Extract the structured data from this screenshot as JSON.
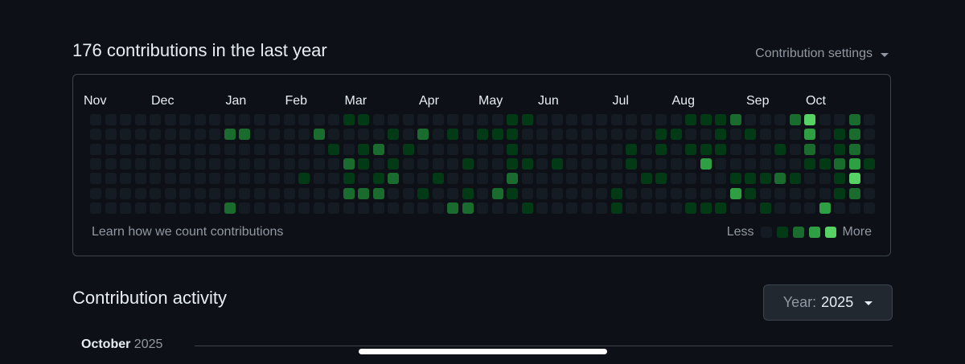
{
  "header": {
    "title": "176 contributions in the last year",
    "settings_label": "Contribution settings"
  },
  "graph": {
    "months": [
      {
        "label": "Nov",
        "week": 0
      },
      {
        "label": "Dec",
        "week": 4
      },
      {
        "label": "Jan",
        "week": 9
      },
      {
        "label": "Feb",
        "week": 13
      },
      {
        "label": "Mar",
        "week": 17
      },
      {
        "label": "Apr",
        "week": 22
      },
      {
        "label": "May",
        "week": 26
      },
      {
        "label": "Jun",
        "week": 30
      },
      {
        "label": "Jul",
        "week": 35
      },
      {
        "label": "Aug",
        "week": 39
      },
      {
        "label": "Sep",
        "week": 44
      },
      {
        "label": "Oct",
        "week": 48
      }
    ],
    "level_colors": [
      "#151b23",
      "#033a16",
      "#196c2e",
      "#2ea043",
      "#56d364"
    ],
    "weeks": 53,
    "contributions": [
      [
        9,
        1,
        2
      ],
      [
        9,
        6,
        2
      ],
      [
        10,
        1,
        2
      ],
      [
        14,
        4,
        1
      ],
      [
        15,
        1,
        2
      ],
      [
        16,
        2,
        1
      ],
      [
        17,
        0,
        1
      ],
      [
        17,
        3,
        2
      ],
      [
        17,
        4,
        1
      ],
      [
        17,
        5,
        2
      ],
      [
        18,
        0,
        1
      ],
      [
        18,
        2,
        1
      ],
      [
        18,
        3,
        1
      ],
      [
        18,
        5,
        2
      ],
      [
        19,
        2,
        2
      ],
      [
        19,
        4,
        1
      ],
      [
        19,
        5,
        2
      ],
      [
        20,
        1,
        1
      ],
      [
        20,
        3,
        1
      ],
      [
        20,
        4,
        2
      ],
      [
        21,
        2,
        1
      ],
      [
        22,
        1,
        2
      ],
      [
        22,
        5,
        1
      ],
      [
        23,
        4,
        1
      ],
      [
        24,
        1,
        1
      ],
      [
        24,
        6,
        2
      ],
      [
        25,
        3,
        1
      ],
      [
        25,
        5,
        1
      ],
      [
        25,
        6,
        2
      ],
      [
        26,
        1,
        1
      ],
      [
        27,
        1,
        1
      ],
      [
        27,
        5,
        2
      ],
      [
        28,
        0,
        1
      ],
      [
        28,
        1,
        1
      ],
      [
        28,
        2,
        1
      ],
      [
        28,
        3,
        1
      ],
      [
        28,
        4,
        2
      ],
      [
        28,
        5,
        1
      ],
      [
        29,
        0,
        1
      ],
      [
        29,
        3,
        1
      ],
      [
        29,
        6,
        1
      ],
      [
        31,
        3,
        1
      ],
      [
        35,
        5,
        1
      ],
      [
        35,
        6,
        1
      ],
      [
        36,
        2,
        1
      ],
      [
        36,
        3,
        1
      ],
      [
        37,
        4,
        1
      ],
      [
        38,
        1,
        1
      ],
      [
        38,
        2,
        1
      ],
      [
        38,
        4,
        1
      ],
      [
        39,
        1,
        1
      ],
      [
        40,
        0,
        1
      ],
      [
        40,
        2,
        1
      ],
      [
        40,
        6,
        1
      ],
      [
        41,
        0,
        1
      ],
      [
        41,
        2,
        1
      ],
      [
        41,
        3,
        3
      ],
      [
        41,
        6,
        1
      ],
      [
        42,
        0,
        1
      ],
      [
        42,
        1,
        1
      ],
      [
        42,
        2,
        1
      ],
      [
        42,
        6,
        1
      ],
      [
        43,
        0,
        2
      ],
      [
        43,
        4,
        1
      ],
      [
        43,
        5,
        3
      ],
      [
        44,
        1,
        1
      ],
      [
        44,
        4,
        1
      ],
      [
        44,
        5,
        1
      ],
      [
        45,
        4,
        1
      ],
      [
        45,
        6,
        1
      ],
      [
        46,
        2,
        1
      ],
      [
        46,
        4,
        2
      ],
      [
        47,
        0,
        2
      ],
      [
        47,
        4,
        1
      ],
      [
        48,
        0,
        4
      ],
      [
        48,
        1,
        3
      ],
      [
        48,
        2,
        2
      ],
      [
        48,
        3,
        1
      ],
      [
        49,
        3,
        1
      ],
      [
        49,
        6,
        3
      ],
      [
        50,
        1,
        1
      ],
      [
        50,
        2,
        1
      ],
      [
        50,
        3,
        2
      ],
      [
        50,
        4,
        1
      ],
      [
        50,
        5,
        1
      ],
      [
        51,
        0,
        2
      ],
      [
        51,
        1,
        2
      ],
      [
        51,
        2,
        2
      ],
      [
        51,
        3,
        3
      ],
      [
        51,
        4,
        4
      ],
      [
        51,
        5,
        2
      ],
      [
        52,
        3,
        1
      ]
    ],
    "learn_link": "Learn how we count contributions",
    "legend_less": "Less",
    "legend_more": "More"
  },
  "activity": {
    "title": "Contribution activity",
    "year_label": "Year:",
    "year_value": "2025",
    "timeline_month": "October",
    "timeline_year": "2025"
  }
}
